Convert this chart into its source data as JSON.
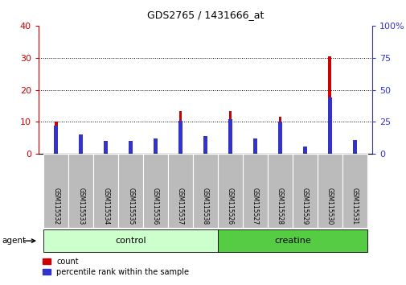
{
  "title": "GDS2765 / 1431666_at",
  "samples": [
    "GSM115532",
    "GSM115533",
    "GSM115534",
    "GSM115535",
    "GSM115536",
    "GSM115537",
    "GSM115538",
    "GSM115526",
    "GSM115527",
    "GSM115528",
    "GSM115529",
    "GSM115530",
    "GSM115531"
  ],
  "count_values": [
    10.2,
    5.0,
    2.2,
    2.1,
    3.0,
    13.4,
    0.8,
    13.4,
    2.0,
    11.5,
    1.8,
    30.5,
    3.0
  ],
  "percentile_values": [
    22,
    15,
    10,
    10,
    12,
    26,
    14,
    27,
    12,
    25,
    6,
    44,
    11
  ],
  "count_color": "#cc0000",
  "percentile_color": "#3333cc",
  "left_ylim": [
    0,
    40
  ],
  "right_ylim": [
    0,
    100
  ],
  "left_yticks": [
    0,
    10,
    20,
    30,
    40
  ],
  "right_yticks": [
    0,
    25,
    50,
    75,
    100
  ],
  "left_ylabel_color": "#cc0000",
  "right_ylabel_color": "#3333cc",
  "n_control": 7,
  "n_creatine": 6,
  "control_color": "#ccffcc",
  "creatine_color": "#55cc44",
  "bar_width": 0.12,
  "blue_bar_width": 0.12,
  "background_color": "#ffffff",
  "tick_label_area_color": "#bbbbbb",
  "legend_count_label": "count",
  "legend_percentile_label": "percentile rank within the sample",
  "agent_label": "agent",
  "control_label": "control",
  "creatine_label": "creatine",
  "figsize": [
    5.06,
    3.54
  ],
  "dpi": 100
}
